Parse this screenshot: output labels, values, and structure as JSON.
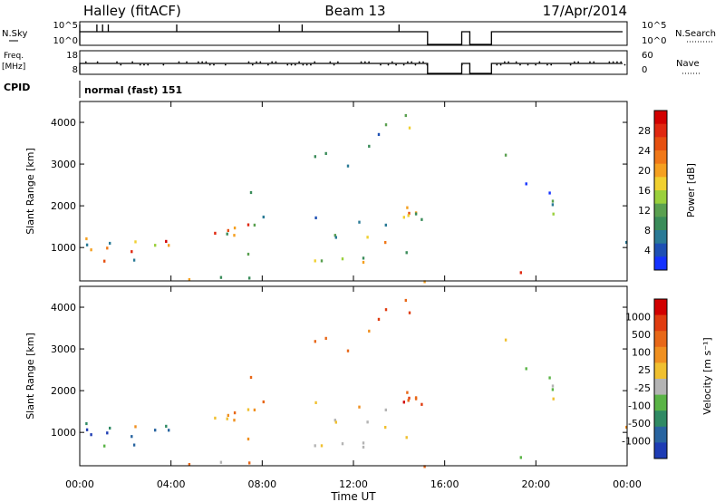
{
  "header": {
    "station": "Halley (fitACF)",
    "beam": "Beam 13",
    "date": "17/Apr/2014"
  },
  "strips": {
    "nsky_label": "N.Sky",
    "nsearch_label": "N.Search",
    "freq_label_1": "Freq.",
    "freq_label_2": "[MHz]",
    "nave_label": "Nave",
    "cpid_label": "CPID",
    "cpid_value": "normal (fast) 151",
    "noise_left_ticks": [
      "10^5",
      "10^0"
    ],
    "noise_right_ticks": [
      "10^5",
      "10^0"
    ],
    "freq_left_ticks": [
      "18",
      "8"
    ],
    "freq_right_ticks": [
      "60",
      "0"
    ],
    "gaps_ut_hours": [
      [
        15.25,
        16.75
      ],
      [
        17.1,
        18.05
      ]
    ],
    "short_segment_ut_hours": [
      16.75,
      17.1
    ]
  },
  "chart_data": [
    {
      "type": "heatmap",
      "panel": "power",
      "xlabel": "",
      "ylabel": "Slant Range [km]",
      "xlim": [
        0,
        24
      ],
      "ylim": [
        200,
        4500
      ],
      "y_ticks": [
        1000,
        2000,
        3000,
        4000
      ],
      "colorbar": {
        "label": "Power [dB]",
        "ticks": [
          "28",
          "24",
          "20",
          "16",
          "12",
          "8",
          "4"
        ],
        "colors": [
          "#1432ff",
          "#1e50b4",
          "#2a7a96",
          "#3a8c5a",
          "#5aa050",
          "#9ad03c",
          "#f0d030",
          "#f5a020",
          "#f07818",
          "#e65010",
          "#e02810",
          "#d20000"
        ],
        "range": [
          0,
          30
        ]
      }
    },
    {
      "type": "heatmap",
      "panel": "velocity",
      "xlabel": "Time UT",
      "ylabel": "Slant Range [km]",
      "xlim": [
        0,
        24
      ],
      "ylim": [
        200,
        4500
      ],
      "y_ticks": [
        1000,
        2000,
        3000,
        4000
      ],
      "x_tick_labels": [
        "00:00",
        "04:00",
        "08:00",
        "12:00",
        "16:00",
        "20:00",
        "00:00"
      ],
      "colorbar": {
        "label": "Velocity [m s⁻¹]",
        "ticks": [
          "1000",
          "500",
          "100",
          "25",
          "-25",
          "-100",
          "-500",
          "-1000"
        ],
        "colors": [
          "#1e3cb4",
          "#2864a0",
          "#2f8a64",
          "#5ab446",
          "#b4b4b4",
          "#f0c030",
          "#f09020",
          "#e86818",
          "#e03c10",
          "#d20000"
        ],
        "range": [
          -1200,
          1200
        ]
      }
    }
  ]
}
